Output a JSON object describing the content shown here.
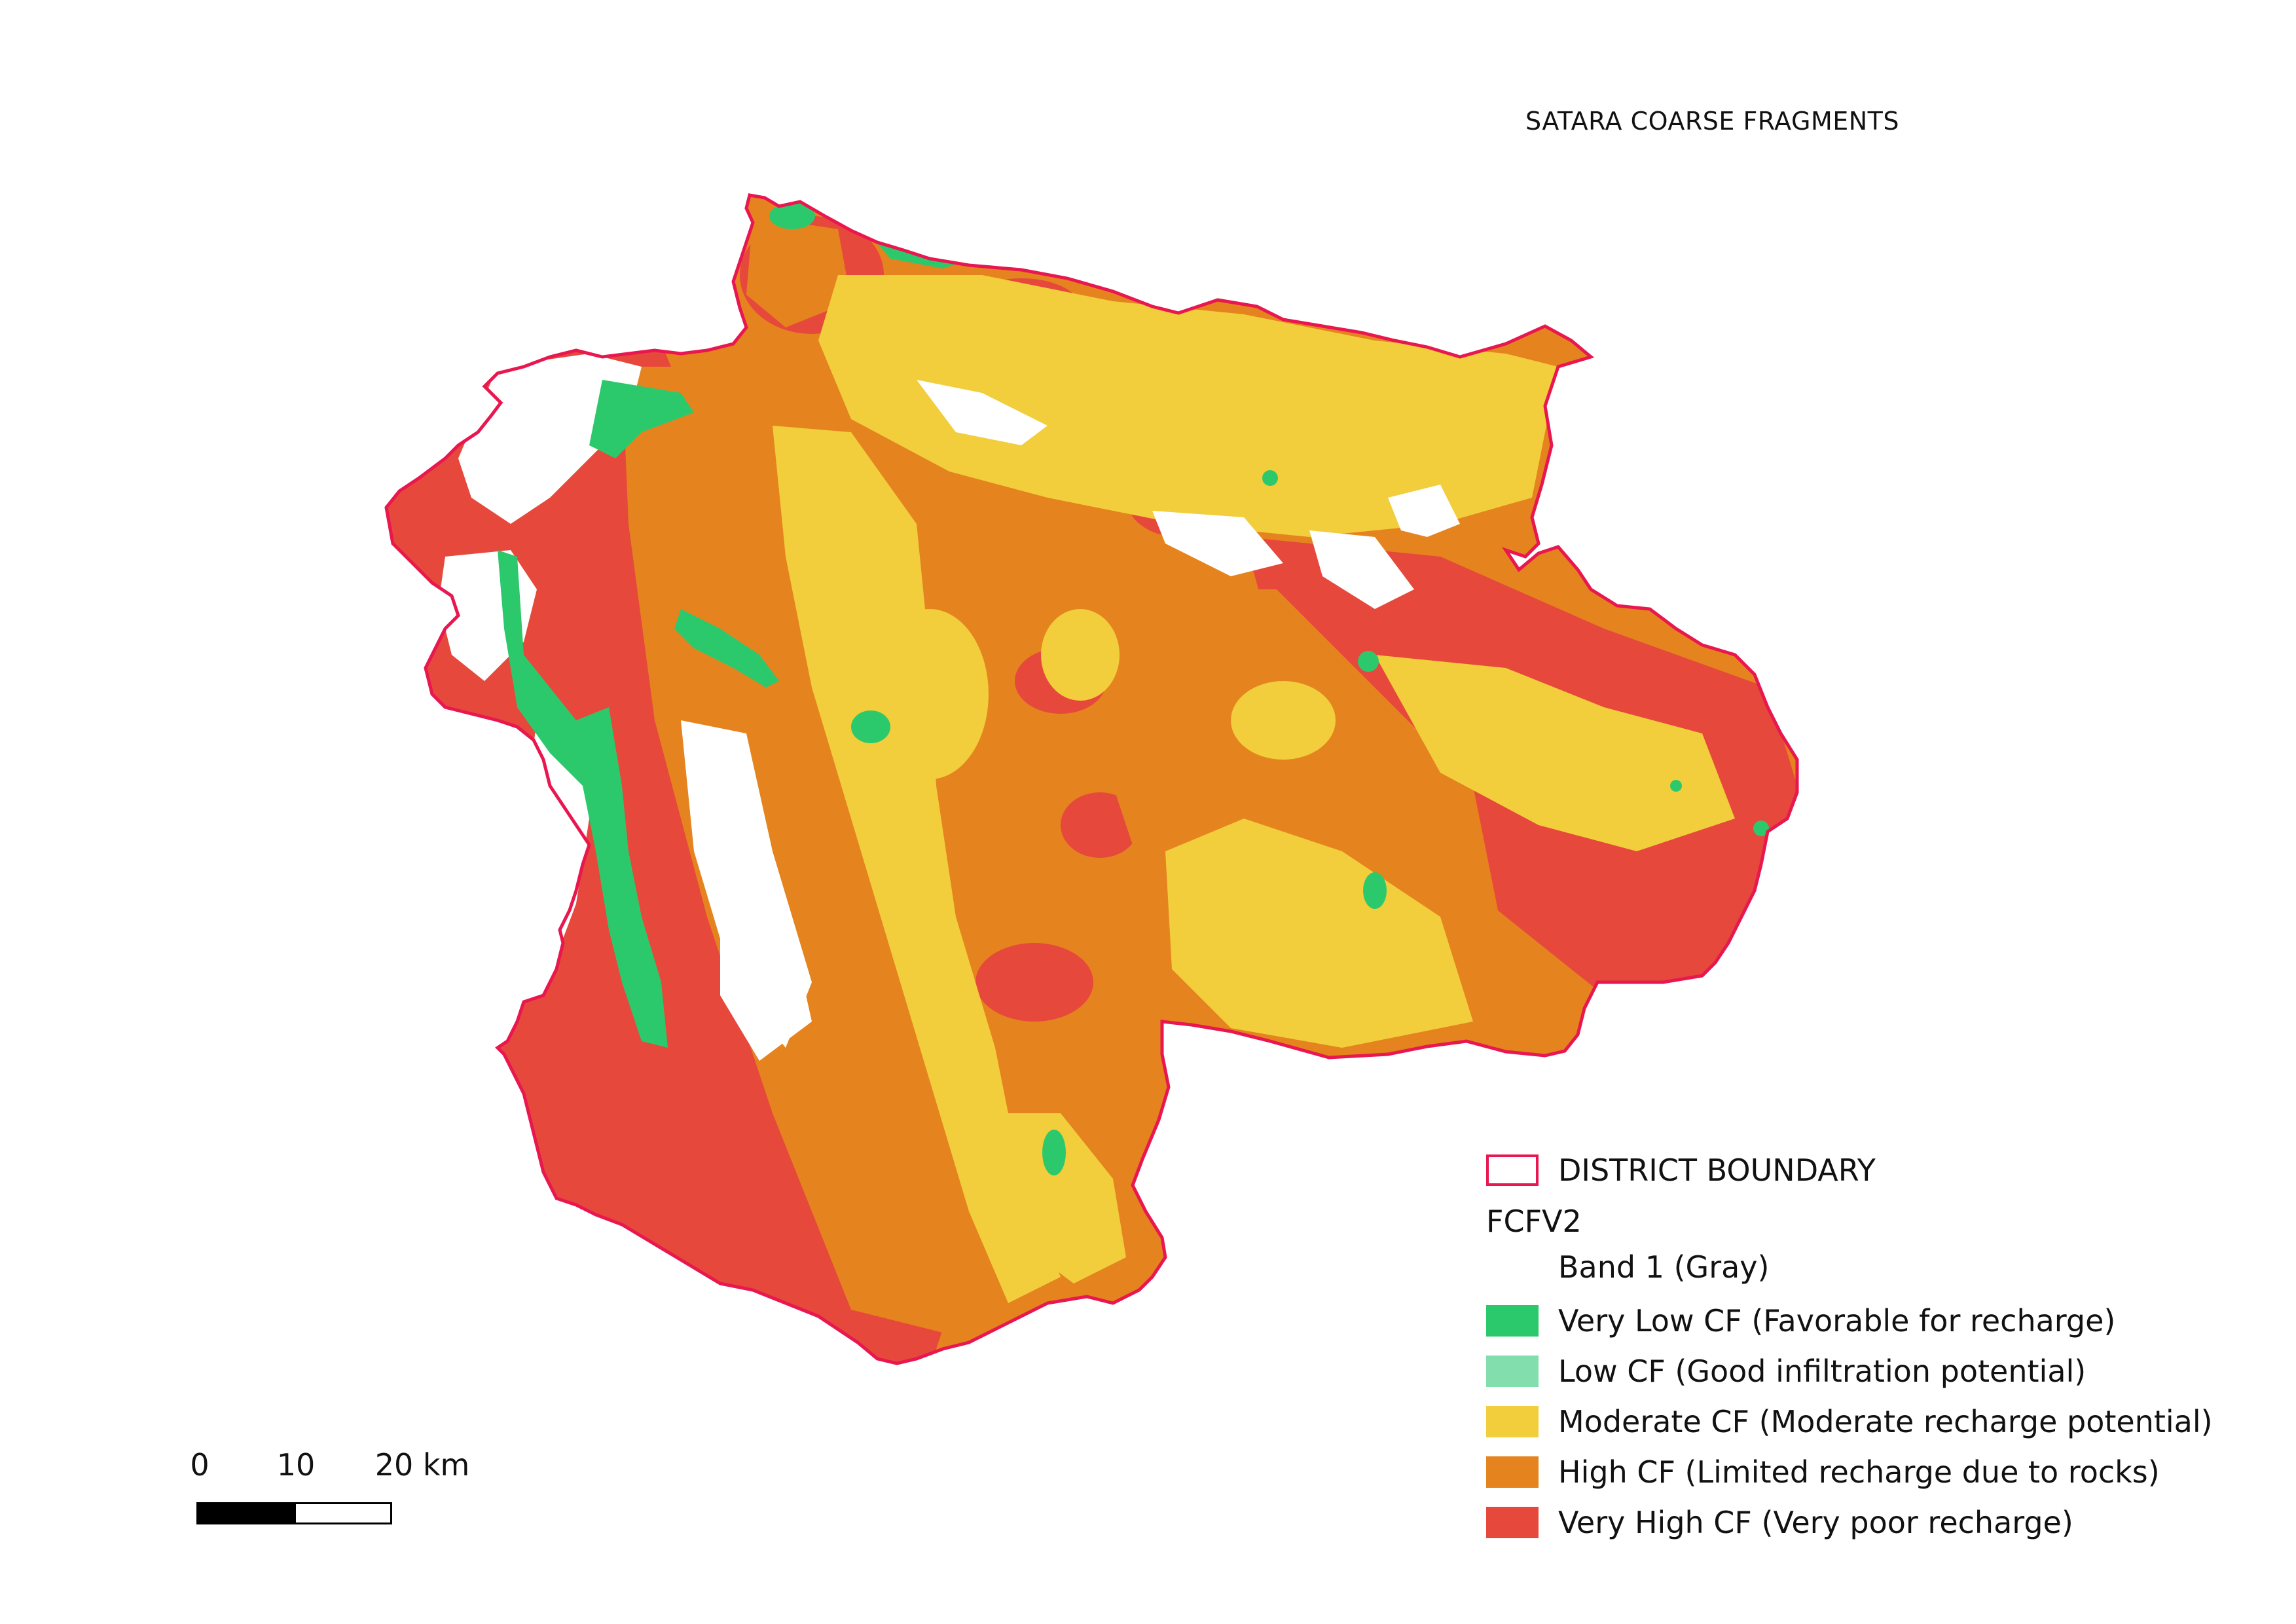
{
  "title": "SATARA COARSE FRAGMENTS",
  "colors": {
    "boundary": "#e8174f",
    "very_low": "#2cc96c",
    "low": "#82deac",
    "moderate": "#f2cd3c",
    "high": "#e5831f",
    "very_high": "#e6483b",
    "nodata": "#ffffff"
  },
  "legend": {
    "boundary_label": "DISTRICT BOUNDARY",
    "layer_name": "FCFV2",
    "band_label": "Band 1 (Gray)",
    "classes": [
      {
        "label": "Very Low CF (Favorable for recharge)",
        "color": "#2cc96c"
      },
      {
        "label": "Low CF (Good infiltration potential)",
        "color": "#82deac"
      },
      {
        "label": "Moderate CF (Moderate recharge potential)",
        "color": "#f2cd3c"
      },
      {
        "label": "High CF (Limited recharge due to rocks)",
        "color": "#e5831f"
      },
      {
        "label": "Very High CF (Very poor recharge)",
        "color": "#e6483b"
      }
    ]
  },
  "scale_bar": {
    "labels": [
      "0",
      "10",
      "20 km"
    ]
  }
}
